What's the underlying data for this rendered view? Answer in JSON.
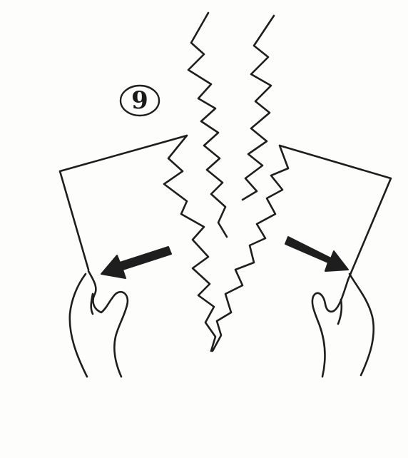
{
  "figure": {
    "step_number": "9",
    "colors": {
      "ink": "#1e1e1e",
      "paper": "#fdfdfc"
    },
    "icons": [
      "tearing-paper-illustration",
      "left-arrow-icon",
      "right-arrow-icon",
      "left-hand-icon",
      "right-hand-icon"
    ]
  }
}
